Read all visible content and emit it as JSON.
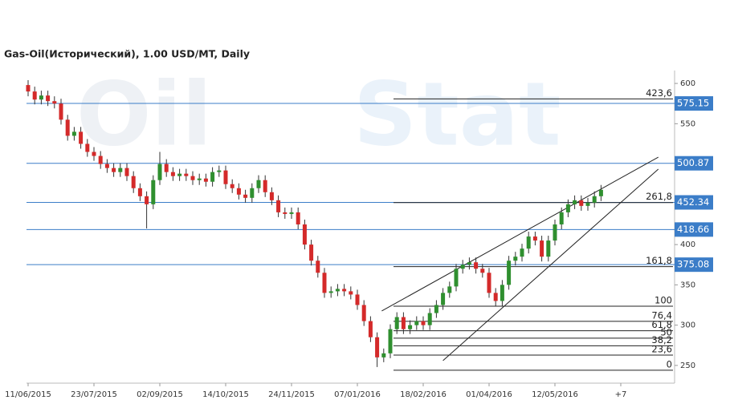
{
  "chart_data": {
    "type": "candlestick",
    "title": "Gas-Oil(Исторический), 1.00 USD/MT, Daily",
    "watermark": [
      "Oil",
      "Stat"
    ],
    "categories": [
      "11/06/2015",
      null,
      null,
      null,
      null,
      null,
      null,
      null,
      null,
      null,
      "23/07/2015",
      null,
      null,
      null,
      null,
      null,
      null,
      null,
      null,
      null,
      "02/09/2015",
      null,
      null,
      null,
      null,
      null,
      null,
      null,
      null,
      null,
      "14/10/2015",
      null,
      null,
      null,
      null,
      null,
      null,
      null,
      null,
      null,
      "24/11/2015",
      null,
      null,
      null,
      null,
      null,
      null,
      null,
      null,
      null,
      "07/01/2016",
      null,
      null,
      null,
      null,
      null,
      null,
      null,
      null,
      null,
      "18/02/2016",
      null,
      null,
      null,
      null,
      null,
      null,
      null,
      null,
      null,
      "01/04/2016",
      null,
      null,
      null,
      null,
      null,
      null,
      null,
      null,
      null,
      "12/05/2016",
      null,
      null,
      null,
      null,
      null,
      null,
      null,
      null,
      null,
      "+7"
    ],
    "open": [
      598,
      590,
      580,
      585,
      578,
      575,
      555,
      535,
      540,
      525,
      515,
      510,
      500,
      495,
      490,
      495,
      485,
      470,
      460,
      450,
      480,
      500,
      490,
      485,
      488,
      485,
      480,
      482,
      478,
      490,
      492,
      475,
      470,
      462,
      458,
      470,
      480,
      465,
      455,
      440,
      438,
      440,
      425,
      400,
      380,
      365,
      340,
      342,
      345,
      342,
      338,
      325,
      305,
      285,
      260,
      265,
      295,
      310,
      295,
      300,
      305,
      300,
      315,
      325,
      340,
      348,
      370,
      375,
      378,
      370,
      365,
      340,
      330,
      350,
      380,
      385,
      395,
      410,
      405,
      385,
      405,
      425,
      440,
      450,
      455,
      448,
      452,
      460,
      null,
      null,
      null
    ],
    "high": [
      604,
      596,
      591,
      591,
      584,
      581,
      561,
      546,
      546,
      531,
      521,
      516,
      506,
      501,
      501,
      501,
      491,
      476,
      466,
      486,
      515,
      506,
      496,
      494,
      494,
      491,
      488,
      488,
      496,
      498,
      498,
      481,
      476,
      468,
      476,
      486,
      486,
      471,
      461,
      446,
      446,
      446,
      431,
      406,
      386,
      371,
      348,
      351,
      351,
      348,
      344,
      331,
      311,
      291,
      271,
      301,
      316,
      316,
      306,
      311,
      311,
      321,
      331,
      346,
      354,
      376,
      381,
      384,
      384,
      376,
      371,
      346,
      356,
      386,
      391,
      401,
      416,
      416,
      411,
      411,
      431,
      446,
      456,
      461,
      461,
      458,
      466,
      474,
      null,
      null,
      null
    ],
    "low": [
      584,
      574,
      574,
      572,
      569,
      549,
      529,
      529,
      519,
      509,
      504,
      494,
      489,
      484,
      484,
      479,
      464,
      454,
      420,
      444,
      474,
      484,
      479,
      479,
      479,
      474,
      474,
      472,
      472,
      484,
      469,
      464,
      456,
      452,
      452,
      464,
      459,
      449,
      434,
      432,
      432,
      419,
      394,
      374,
      359,
      334,
      334,
      336,
      336,
      332,
      319,
      299,
      279,
      248,
      254,
      259,
      289,
      289,
      289,
      294,
      294,
      294,
      309,
      319,
      334,
      342,
      364,
      369,
      364,
      359,
      334,
      324,
      324,
      344,
      374,
      379,
      389,
      399,
      379,
      379,
      399,
      419,
      434,
      444,
      442,
      442,
      446,
      454,
      null,
      null,
      null
    ],
    "close": [
      590,
      580,
      585,
      578,
      575,
      555,
      535,
      540,
      525,
      515,
      510,
      500,
      495,
      490,
      495,
      485,
      470,
      460,
      450,
      480,
      500,
      490,
      485,
      488,
      485,
      480,
      482,
      478,
      490,
      492,
      475,
      470,
      462,
      458,
      470,
      480,
      465,
      455,
      440,
      438,
      440,
      425,
      400,
      380,
      365,
      340,
      342,
      345,
      342,
      338,
      325,
      305,
      285,
      260,
      265,
      295,
      310,
      295,
      300,
      305,
      300,
      315,
      325,
      340,
      348,
      370,
      375,
      378,
      370,
      365,
      340,
      330,
      350,
      380,
      385,
      395,
      410,
      405,
      385,
      405,
      425,
      440,
      450,
      455,
      448,
      452,
      460,
      468,
      null,
      null,
      null
    ],
    "up_color": "#2f8f2f",
    "down_color": "#d42a2a",
    "levels": [
      575.15,
      500.87,
      452.34,
      418.66,
      375.08
    ],
    "level_color": "#3b7dc8",
    "fib_levels": [
      {
        "name": "423,6",
        "price": 580.8
      },
      {
        "name": "261,8",
        "price": 452.1
      },
      {
        "name": "161,8",
        "price": 372.6
      },
      {
        "name": "100",
        "price": 323.5
      },
      {
        "name": "76,4",
        "price": 304.7
      },
      {
        "name": "61,8",
        "price": 293.1
      },
      {
        "name": "50",
        "price": 283.8
      },
      {
        "name": "38,2",
        "price": 274.4
      },
      {
        "name": "23,6",
        "price": 262.8
      },
      {
        "name": "0",
        "price": 244
      }
    ],
    "trendlines": [
      {
        "x": [
          53.7,
          95.7
        ],
        "values": [
          317.6,
          508.5
        ]
      },
      {
        "x": [
          63,
          95.7
        ],
        "values": [
          256,
          493.6
        ]
      }
    ],
    "ylim": [
      228,
      616
    ],
    "yticks": [
      250,
      300,
      350,
      400,
      450,
      500,
      550,
      600
    ]
  }
}
